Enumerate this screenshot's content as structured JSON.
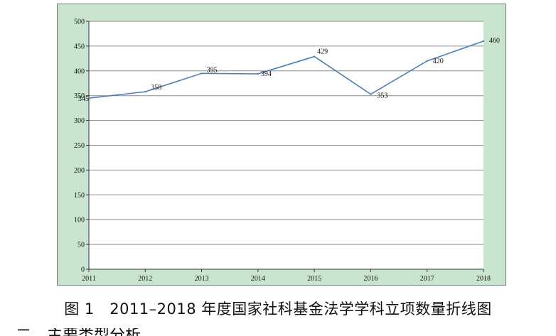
{
  "figure": {
    "caption": "图 1　2011–2018 年度国家社科基金法学学科立项数量折线图",
    "next_heading_partial": "二、主要类型分析"
  },
  "colors": {
    "frame_background": "#c9e5cf",
    "plot_background": "#ffffff",
    "line": "#4a7eb5",
    "grid": "#8c8c8c",
    "axis": "#333333",
    "text": "#111111"
  },
  "chart_data": {
    "type": "line",
    "title": "",
    "xlabel": "",
    "ylabel": "",
    "categories": [
      "2011",
      "2012",
      "2013",
      "2014",
      "2015",
      "2016",
      "2017",
      "2018"
    ],
    "series": [
      {
        "values": [
          345,
          358,
          395,
          394,
          429,
          353,
          420,
          460
        ],
        "data_labels": [
          "345",
          "358",
          "395",
          "394",
          "429",
          "353",
          "420",
          "460"
        ]
      }
    ],
    "ylim": [
      0,
      500
    ],
    "yticks": [
      0,
      50,
      100,
      150,
      200,
      250,
      300,
      350,
      400,
      450,
      500
    ],
    "ytick_labels": [
      "0",
      "50",
      "100",
      "150",
      "200",
      "250",
      "300",
      "350",
      "400",
      "450",
      "500"
    ],
    "grid": true,
    "legend": "none"
  }
}
